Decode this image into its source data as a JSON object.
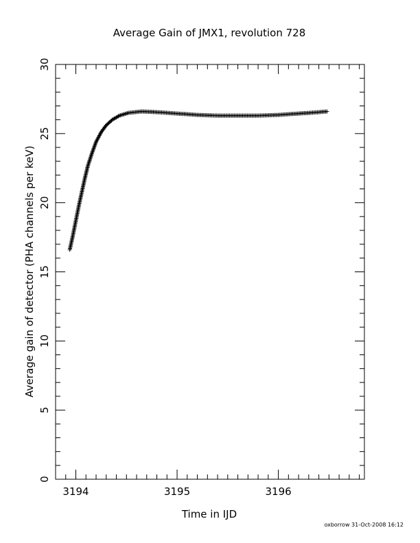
{
  "chart_data": {
    "type": "scatter",
    "title": "Average Gain of JMX1, revolution 728",
    "xlabel": "Time in IJD",
    "ylabel": "Average gain of detector (PHA channels per keV)",
    "xlim": [
      3193.8,
      3196.85
    ],
    "ylim": [
      0,
      30
    ],
    "x_ticks": [
      3194,
      3195,
      3196
    ],
    "y_ticks": [
      0,
      5,
      10,
      15,
      20,
      25,
      30
    ],
    "marker": "plus",
    "grid": false,
    "legend": "none",
    "colors": {
      "marker": "#000000",
      "axes": "#000000"
    },
    "curve_points": [
      {
        "x": 3193.94,
        "y": 16.6
      },
      {
        "x": 3193.97,
        "y": 17.6
      },
      {
        "x": 3194.0,
        "y": 18.7
      },
      {
        "x": 3194.03,
        "y": 19.8
      },
      {
        "x": 3194.06,
        "y": 20.8
      },
      {
        "x": 3194.09,
        "y": 21.8
      },
      {
        "x": 3194.12,
        "y": 22.7
      },
      {
        "x": 3194.16,
        "y": 23.6
      },
      {
        "x": 3194.2,
        "y": 24.4
      },
      {
        "x": 3194.25,
        "y": 25.1
      },
      {
        "x": 3194.3,
        "y": 25.6
      },
      {
        "x": 3194.36,
        "y": 26.0
      },
      {
        "x": 3194.43,
        "y": 26.3
      },
      {
        "x": 3194.52,
        "y": 26.5
      },
      {
        "x": 3194.65,
        "y": 26.6
      },
      {
        "x": 3194.8,
        "y": 26.55
      },
      {
        "x": 3195.0,
        "y": 26.45
      },
      {
        "x": 3195.2,
        "y": 26.35
      },
      {
        "x": 3195.4,
        "y": 26.3
      },
      {
        "x": 3195.6,
        "y": 26.3
      },
      {
        "x": 3195.8,
        "y": 26.3
      },
      {
        "x": 3196.0,
        "y": 26.35
      },
      {
        "x": 3196.2,
        "y": 26.45
      },
      {
        "x": 3196.35,
        "y": 26.52
      },
      {
        "x": 3196.48,
        "y": 26.6
      }
    ]
  },
  "footer": "oxborrow 31-Oct-2008 16:12"
}
